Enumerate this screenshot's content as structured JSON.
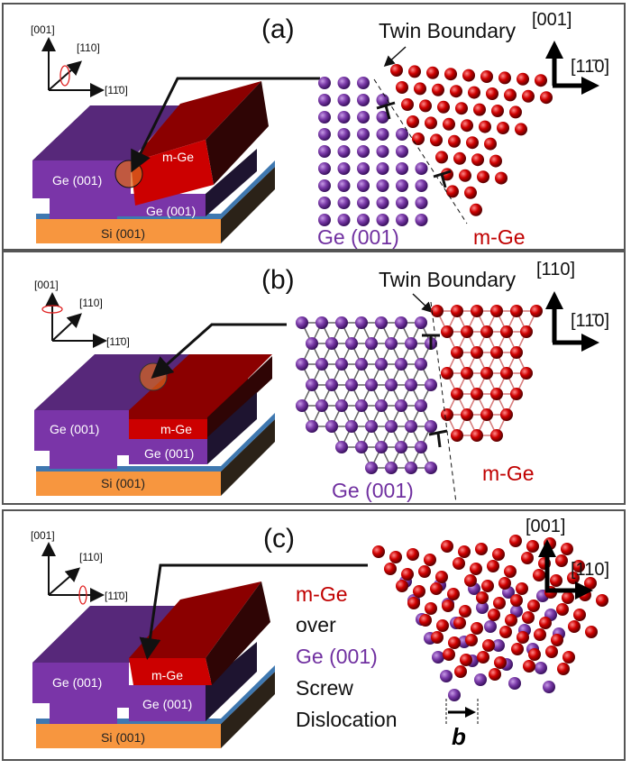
{
  "colors": {
    "ge": "#7a3aa8",
    "mge": "#cc0000",
    "si": "#f7963f",
    "oxide": "#3f78b0"
  },
  "panels": [
    {
      "label": "(a)",
      "triad": {
        "z": "[001]",
        "y": "[110]",
        "x": "[11̄0]",
        "rotation_axis": "[110]"
      },
      "device": {
        "ge_top": "Ge (001)",
        "mge": "m-Ge",
        "ge_bottom": "Ge (001)",
        "si": "Si (001)"
      },
      "title": "Twin Boundary",
      "lattice_axes": {
        "up": "[001]",
        "right": "[11̄0]"
      },
      "ge_label": "Ge (001)",
      "mge_label": "m-Ge"
    },
    {
      "label": "(b)",
      "triad": {
        "z": "[001]",
        "y": "[110]",
        "x": "[11̄0]",
        "rotation_axis": "[001]"
      },
      "device": {
        "ge_top": "Ge (001)",
        "mge": "m-Ge",
        "ge_bottom": "Ge (001)",
        "si": "Si (001)"
      },
      "title": "Twin Boundary",
      "lattice_axes": {
        "up": "[110]",
        "right": "[11̄0]"
      },
      "ge_label": "Ge (001)",
      "mge_label": "m-Ge"
    },
    {
      "label": "(c)",
      "triad": {
        "z": "[001]",
        "y": "[110]",
        "x": "[11̄0]",
        "rotation_axis": "[11̄0]"
      },
      "device": {
        "ge_top": "Ge (001)",
        "mge": "m-Ge",
        "ge_bottom": "Ge (001)",
        "si": "Si (001)"
      },
      "legend": {
        "line1": "m-Ge",
        "line2": "over",
        "line3": "Ge (001)",
        "line4": "Screw",
        "line5": "Dislocation"
      },
      "burgers": "b",
      "lattice_axes": {
        "up": "[001]",
        "right": "[110]"
      }
    }
  ]
}
